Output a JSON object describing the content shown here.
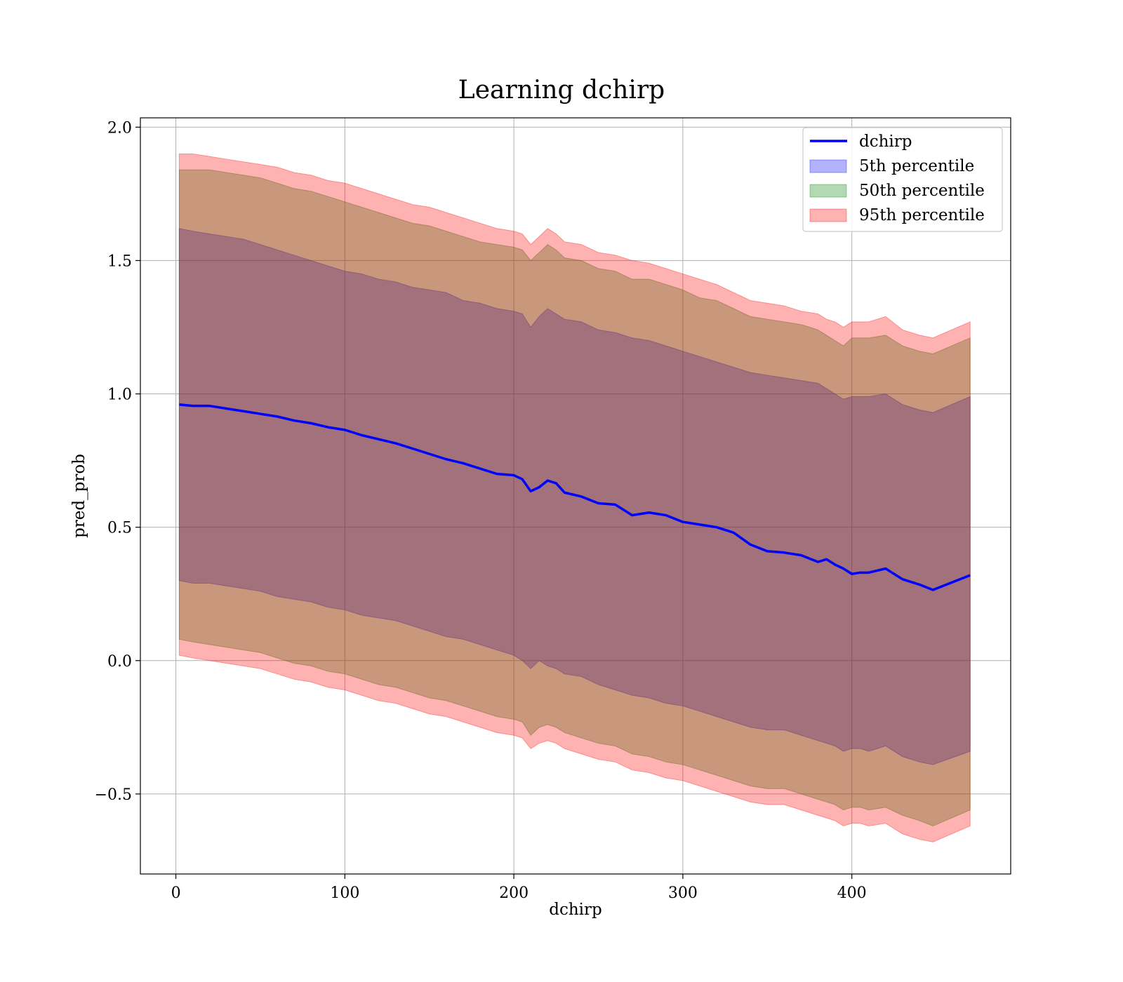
{
  "chart_data": {
    "type": "area",
    "title": "Learning dchirp",
    "xlabel": "dchirp",
    "ylabel": "pred_prob",
    "xlim": [
      -21,
      494
    ],
    "ylim": [
      -0.8,
      2.035
    ],
    "x_ticks": [
      0,
      100,
      200,
      300,
      400
    ],
    "y_ticks": [
      -0.5,
      0.0,
      0.5,
      1.0,
      1.5,
      2.0
    ],
    "x_tick_labels": [
      "0",
      "100",
      "200",
      "300",
      "400"
    ],
    "y_tick_labels": [
      "−0.5",
      "0.0",
      "0.5",
      "1.0",
      "1.5",
      "2.0"
    ],
    "grid": true,
    "legend": {
      "placement": "top-right",
      "entries": [
        {
          "label": "dchirp",
          "kind": "line",
          "color": "#0000ff"
        },
        {
          "label": "5th percentile",
          "kind": "patch",
          "color": "#0000ff"
        },
        {
          "label": "50th percentile",
          "kind": "patch",
          "color": "#008000"
        },
        {
          "label": "95th percentile",
          "kind": "patch",
          "color": "#ff0000"
        }
      ]
    },
    "x": [
      2,
      10,
      20,
      30,
      40,
      50,
      60,
      70,
      80,
      90,
      100,
      110,
      120,
      130,
      140,
      150,
      160,
      170,
      180,
      190,
      200,
      205,
      210,
      215,
      220,
      225,
      230,
      240,
      250,
      260,
      270,
      280,
      290,
      300,
      310,
      320,
      330,
      340,
      350,
      360,
      370,
      380,
      385,
      390,
      395,
      400,
      405,
      410,
      420,
      430,
      440,
      448,
      470
    ],
    "series": [
      {
        "name": "dchirp",
        "kind": "line",
        "color": "#0000ff",
        "values": [
          0.96,
          0.955,
          0.955,
          0.945,
          0.935,
          0.925,
          0.915,
          0.9,
          0.89,
          0.875,
          0.865,
          0.845,
          0.83,
          0.815,
          0.795,
          0.775,
          0.755,
          0.74,
          0.72,
          0.7,
          0.695,
          0.68,
          0.635,
          0.65,
          0.675,
          0.665,
          0.63,
          0.615,
          0.59,
          0.585,
          0.545,
          0.555,
          0.545,
          0.52,
          0.51,
          0.5,
          0.48,
          0.435,
          0.41,
          0.405,
          0.395,
          0.37,
          0.38,
          0.36,
          0.345,
          0.325,
          0.33,
          0.33,
          0.345,
          0.305,
          0.285,
          0.265,
          0.32
        ]
      },
      {
        "name": "5th percentile",
        "kind": "band",
        "color": "#0000ff",
        "opacity": 0.3,
        "upper": [
          1.62,
          1.61,
          1.6,
          1.59,
          1.58,
          1.56,
          1.54,
          1.52,
          1.5,
          1.48,
          1.46,
          1.45,
          1.43,
          1.42,
          1.4,
          1.39,
          1.38,
          1.35,
          1.34,
          1.32,
          1.31,
          1.3,
          1.25,
          1.29,
          1.32,
          1.3,
          1.28,
          1.27,
          1.24,
          1.23,
          1.21,
          1.2,
          1.18,
          1.16,
          1.14,
          1.12,
          1.1,
          1.08,
          1.07,
          1.06,
          1.05,
          1.04,
          1.02,
          1.0,
          0.98,
          0.99,
          0.99,
          0.99,
          1.0,
          0.96,
          0.94,
          0.93,
          0.99
        ],
        "lower": [
          0.3,
          0.29,
          0.29,
          0.28,
          0.27,
          0.26,
          0.24,
          0.23,
          0.22,
          0.2,
          0.19,
          0.17,
          0.16,
          0.15,
          0.13,
          0.11,
          0.09,
          0.08,
          0.06,
          0.04,
          0.02,
          0.0,
          -0.03,
          0.0,
          -0.02,
          -0.03,
          -0.05,
          -0.06,
          -0.09,
          -0.11,
          -0.13,
          -0.14,
          -0.16,
          -0.17,
          -0.19,
          -0.21,
          -0.23,
          -0.25,
          -0.26,
          -0.26,
          -0.28,
          -0.3,
          -0.31,
          -0.32,
          -0.34,
          -0.33,
          -0.33,
          -0.34,
          -0.32,
          -0.36,
          -0.38,
          -0.39,
          -0.34
        ]
      },
      {
        "name": "50th percentile",
        "kind": "band",
        "color": "#008000",
        "opacity": 0.3,
        "upper": [
          1.84,
          1.84,
          1.84,
          1.83,
          1.82,
          1.81,
          1.79,
          1.77,
          1.76,
          1.74,
          1.72,
          1.7,
          1.68,
          1.66,
          1.64,
          1.63,
          1.61,
          1.59,
          1.57,
          1.56,
          1.55,
          1.54,
          1.5,
          1.53,
          1.56,
          1.54,
          1.51,
          1.5,
          1.47,
          1.46,
          1.43,
          1.43,
          1.41,
          1.39,
          1.36,
          1.35,
          1.32,
          1.29,
          1.28,
          1.27,
          1.26,
          1.24,
          1.22,
          1.2,
          1.18,
          1.21,
          1.21,
          1.21,
          1.22,
          1.18,
          1.16,
          1.15,
          1.21
        ],
        "lower": [
          0.08,
          0.07,
          0.06,
          0.05,
          0.04,
          0.03,
          0.01,
          -0.01,
          -0.02,
          -0.04,
          -0.05,
          -0.07,
          -0.09,
          -0.1,
          -0.12,
          -0.14,
          -0.15,
          -0.17,
          -0.19,
          -0.21,
          -0.22,
          -0.23,
          -0.28,
          -0.25,
          -0.24,
          -0.25,
          -0.27,
          -0.29,
          -0.31,
          -0.32,
          -0.35,
          -0.36,
          -0.38,
          -0.39,
          -0.41,
          -0.43,
          -0.45,
          -0.47,
          -0.48,
          -0.48,
          -0.5,
          -0.52,
          -0.53,
          -0.54,
          -0.56,
          -0.55,
          -0.55,
          -0.56,
          -0.55,
          -0.58,
          -0.6,
          -0.62,
          -0.56
        ]
      },
      {
        "name": "95th percentile",
        "kind": "band",
        "color": "#ff0000",
        "opacity": 0.3,
        "upper": [
          1.9,
          1.9,
          1.89,
          1.88,
          1.87,
          1.86,
          1.85,
          1.83,
          1.82,
          1.8,
          1.79,
          1.77,
          1.75,
          1.73,
          1.71,
          1.7,
          1.68,
          1.66,
          1.64,
          1.62,
          1.61,
          1.6,
          1.56,
          1.59,
          1.62,
          1.6,
          1.57,
          1.56,
          1.53,
          1.52,
          1.5,
          1.49,
          1.47,
          1.45,
          1.43,
          1.41,
          1.38,
          1.35,
          1.34,
          1.33,
          1.31,
          1.3,
          1.28,
          1.27,
          1.25,
          1.27,
          1.27,
          1.27,
          1.29,
          1.24,
          1.22,
          1.21,
          1.27
        ],
        "lower": [
          0.02,
          0.01,
          0.0,
          -0.01,
          -0.02,
          -0.03,
          -0.05,
          -0.07,
          -0.08,
          -0.1,
          -0.11,
          -0.13,
          -0.15,
          -0.16,
          -0.18,
          -0.2,
          -0.21,
          -0.23,
          -0.25,
          -0.27,
          -0.28,
          -0.29,
          -0.33,
          -0.31,
          -0.3,
          -0.31,
          -0.33,
          -0.35,
          -0.37,
          -0.38,
          -0.41,
          -0.42,
          -0.44,
          -0.45,
          -0.47,
          -0.49,
          -0.51,
          -0.53,
          -0.54,
          -0.54,
          -0.56,
          -0.58,
          -0.59,
          -0.6,
          -0.62,
          -0.61,
          -0.61,
          -0.62,
          -0.61,
          -0.65,
          -0.67,
          -0.68,
          -0.62
        ]
      }
    ]
  }
}
